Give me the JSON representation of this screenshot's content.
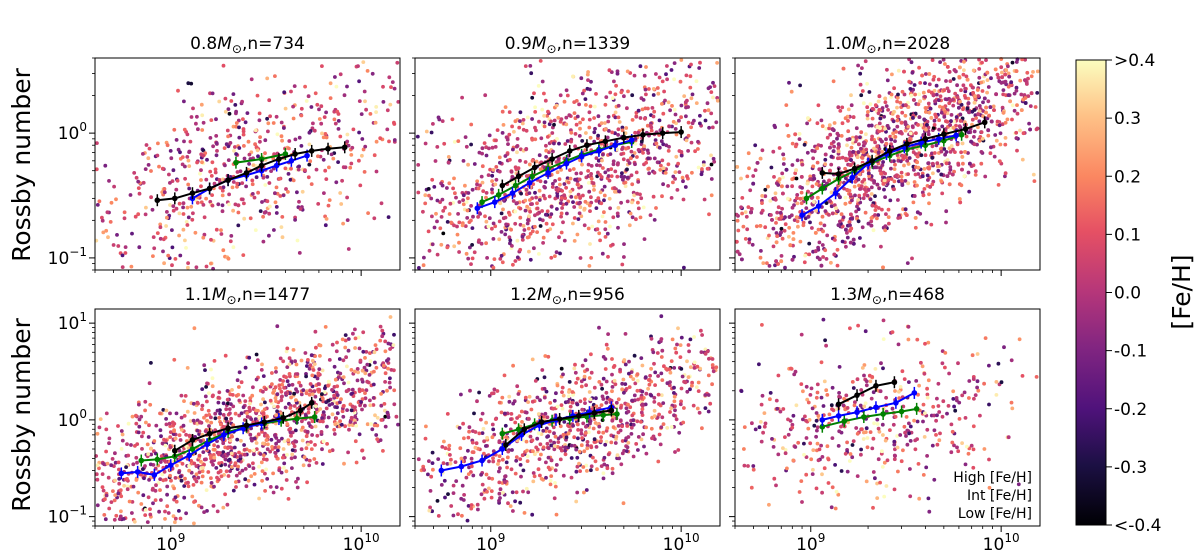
{
  "figure": {
    "ylabel": "Rossby number",
    "colorbar_label": "[Fe/H]",
    "colorbar_ticks": [
      ">0.4",
      "0.3",
      "0.2",
      "0.1",
      "0.0",
      "-0.1",
      "-0.2",
      "-0.3",
      "<-0.4"
    ],
    "legend": [
      {
        "label": "High [Fe/H]",
        "color": "#008000"
      },
      {
        "label": "Int [Fe/H]",
        "color": "#0000ff"
      },
      {
        "label": "Low [Fe/H]",
        "color": "#000000"
      }
    ],
    "colormap": "magma"
  },
  "chart_data": [
    {
      "type": "scatter",
      "title_prefix": "0.8",
      "title_suffix": ",n=734",
      "xscale": "log",
      "yscale": "log",
      "xlim": [
        400000000,
        16000000000
      ],
      "ylim": [
        0.08,
        4
      ],
      "xticks": [
        {
          "value": 1000000000,
          "label": "10",
          "sup": "9"
        },
        {
          "value": 10000000000,
          "label": "10",
          "sup": "10"
        }
      ],
      "yticks": [
        {
          "value": 0.1,
          "label": "10",
          "sup": "−1"
        },
        {
          "value": 1,
          "label": "10",
          "sup": "0"
        }
      ],
      "show_xticklabels": false,
      "n_points": 734,
      "cloud": {
        "center_x": 2500000000,
        "center_y": 0.5,
        "spread_x": 0.27,
        "spread_y": 0.25,
        "slope": 0.5
      },
      "series": [
        {
          "name": "High [Fe/H]",
          "color": "#008000",
          "x": [
            2200000000,
            3000000000,
            4000000000
          ],
          "y": [
            0.58,
            0.62,
            0.68
          ]
        },
        {
          "name": "Int [Fe/H]",
          "color": "#0000ff",
          "x": [
            1300000000,
            1600000000,
            2000000000,
            2500000000,
            3000000000,
            3600000000,
            4300000000,
            5200000000
          ],
          "y": [
            0.3,
            0.36,
            0.42,
            0.46,
            0.5,
            0.55,
            0.6,
            0.66
          ]
        },
        {
          "name": "Low [Fe/H]",
          "color": "#000000",
          "x": [
            850000000,
            1050000000,
            1300000000,
            1600000000,
            2000000000,
            2500000000,
            3000000000,
            3700000000,
            4500000000,
            5500000000,
            6700000000,
            8200000000
          ],
          "y": [
            0.29,
            0.3,
            0.33,
            0.36,
            0.42,
            0.48,
            0.55,
            0.62,
            0.68,
            0.72,
            0.75,
            0.77
          ]
        }
      ]
    },
    {
      "type": "scatter",
      "title_prefix": "0.9",
      "title_suffix": ",n=1339",
      "xscale": "log",
      "yscale": "log",
      "xlim": [
        400000000,
        16000000000
      ],
      "ylim": [
        0.08,
        4
      ],
      "xticks": [
        {
          "value": 1000000000,
          "label": "10",
          "sup": "9"
        },
        {
          "value": 10000000000,
          "label": "10",
          "sup": "10"
        }
      ],
      "yticks": [
        {
          "value": 0.1,
          "label": "10",
          "sup": "−1"
        },
        {
          "value": 1,
          "label": "10",
          "sup": "0"
        }
      ],
      "show_xticklabels": false,
      "n_points": 1339,
      "cloud": {
        "center_x": 2800000000,
        "center_y": 0.55,
        "spread_x": 0.27,
        "spread_y": 0.25,
        "slope": 0.6
      },
      "series": [
        {
          "name": "High [Fe/H]",
          "color": "#008000",
          "x": [
            900000000,
            1100000000,
            1350000000,
            1650000000,
            2000000000,
            2500000000,
            3000000000,
            3700000000,
            4500000000,
            5500000000
          ],
          "y": [
            0.28,
            0.32,
            0.38,
            0.45,
            0.52,
            0.6,
            0.67,
            0.74,
            0.8,
            0.85
          ]
        },
        {
          "name": "Int [Fe/H]",
          "color": "#0000ff",
          "x": [
            850000000,
            1050000000,
            1300000000,
            1600000000,
            2000000000,
            2500000000,
            3000000000,
            3700000000,
            4500000000,
            5500000000
          ],
          "y": [
            0.25,
            0.28,
            0.33,
            0.4,
            0.48,
            0.57,
            0.65,
            0.72,
            0.8,
            0.88
          ]
        },
        {
          "name": "Low [Fe/H]",
          "color": "#000000",
          "x": [
            1150000000,
            1400000000,
            1700000000,
            2100000000,
            2600000000,
            3200000000,
            4000000000,
            5000000000,
            6300000000,
            8000000000,
            10000000000
          ],
          "y": [
            0.38,
            0.45,
            0.53,
            0.62,
            0.72,
            0.8,
            0.86,
            0.92,
            0.97,
            1.0,
            1.02
          ]
        }
      ]
    },
    {
      "type": "scatter",
      "title_prefix": "1.0",
      "title_suffix": ",n=2028",
      "xscale": "log",
      "yscale": "log",
      "xlim": [
        400000000,
        16000000000
      ],
      "ylim": [
        0.08,
        4
      ],
      "xticks": [
        {
          "value": 1000000000,
          "label": "10",
          "sup": "9"
        },
        {
          "value": 10000000000,
          "label": "10",
          "sup": "10"
        }
      ],
      "yticks": [
        {
          "value": 0.1,
          "label": "10",
          "sup": "−1"
        },
        {
          "value": 1,
          "label": "10",
          "sup": "0"
        }
      ],
      "show_xticklabels": false,
      "n_points": 2028,
      "cloud": {
        "center_x": 3000000000,
        "center_y": 0.75,
        "spread_x": 0.25,
        "spread_y": 0.22,
        "slope": 0.8
      },
      "series": [
        {
          "name": "High [Fe/H]",
          "color": "#008000",
          "x": [
            950000000,
            1150000000,
            1400000000,
            1700000000,
            2100000000,
            2600000000,
            3200000000,
            4000000000,
            5000000000,
            6200000000
          ],
          "y": [
            0.3,
            0.36,
            0.43,
            0.5,
            0.58,
            0.66,
            0.74,
            0.8,
            0.87,
            0.97
          ]
        },
        {
          "name": "Int [Fe/H]",
          "color": "#0000ff",
          "x": [
            900000000,
            1100000000,
            1350000000,
            1650000000,
            2000000000,
            2500000000,
            3100000000,
            3800000000,
            4700000000,
            5800000000
          ],
          "y": [
            0.22,
            0.26,
            0.33,
            0.44,
            0.57,
            0.68,
            0.77,
            0.84,
            0.9,
            0.96
          ]
        },
        {
          "name": "Low [Fe/H]",
          "color": "#000000",
          "x": [
            1150000000,
            1400000000,
            1700000000,
            2100000000,
            2600000000,
            3200000000,
            4000000000,
            5000000000,
            6500000000,
            8200000000
          ],
          "y": [
            0.48,
            0.47,
            0.52,
            0.6,
            0.72,
            0.82,
            0.9,
            0.98,
            1.08,
            1.22
          ]
        }
      ]
    },
    {
      "type": "scatter",
      "title_prefix": "1.1",
      "title_suffix": ",n=1477",
      "xscale": "log",
      "yscale": "log",
      "xlim": [
        400000000,
        16000000000
      ],
      "ylim": [
        0.08,
        14
      ],
      "xticks": [
        {
          "value": 1000000000,
          "label": "10",
          "sup": "9"
        },
        {
          "value": 10000000000,
          "label": "10",
          "sup": "10"
        }
      ],
      "yticks": [
        {
          "value": 0.1,
          "label": "10",
          "sup": "−1"
        },
        {
          "value": 1,
          "label": "10",
          "sup": "0"
        },
        {
          "value": 10,
          "label": "10",
          "sup": "1"
        }
      ],
      "show_xticklabels": true,
      "n_points": 1477,
      "cloud": {
        "center_x": 2600000000,
        "center_y": 0.8,
        "spread_x": 0.27,
        "spread_y": 0.22,
        "slope": 0.7
      },
      "series": [
        {
          "name": "High [Fe/H]",
          "color": "#008000",
          "x": [
            700000000,
            850000000,
            1050000000,
            1300000000,
            1600000000,
            2000000000,
            2500000000,
            3100000000,
            3800000000,
            4600000000,
            5700000000
          ],
          "y": [
            0.38,
            0.39,
            0.42,
            0.5,
            0.62,
            0.75,
            0.85,
            0.92,
            0.98,
            1.03,
            1.07
          ]
        },
        {
          "name": "Int [Fe/H]",
          "color": "#0000ff",
          "x": [
            550000000,
            670000000,
            820000000,
            1000000000,
            1250000000,
            1550000000,
            1900000000,
            2400000000,
            3000000000,
            3700000000
          ],
          "y": [
            0.28,
            0.29,
            0.27,
            0.34,
            0.43,
            0.56,
            0.7,
            0.82,
            0.92,
            1.02
          ]
        },
        {
          "name": "Low [Fe/H]",
          "color": "#000000",
          "x": [
            1050000000,
            1300000000,
            1600000000,
            2000000000,
            2500000000,
            3100000000,
            3900000000,
            4800000000,
            5500000000
          ],
          "y": [
            0.48,
            0.62,
            0.72,
            0.82,
            0.88,
            0.95,
            1.05,
            1.25,
            1.5
          ]
        }
      ]
    },
    {
      "type": "scatter",
      "title_prefix": "1.2",
      "title_suffix": ",n=956",
      "xscale": "log",
      "yscale": "log",
      "xlim": [
        400000000,
        16000000000
      ],
      "ylim": [
        0.08,
        14
      ],
      "xticks": [
        {
          "value": 1000000000,
          "label": "10",
          "sup": "9"
        },
        {
          "value": 10000000000,
          "label": "10",
          "sup": "10"
        }
      ],
      "yticks": [
        {
          "value": 0.1,
          "label": "10",
          "sup": "−1"
        },
        {
          "value": 1,
          "label": "10",
          "sup": "0"
        },
        {
          "value": 10,
          "label": "10",
          "sup": "1"
        }
      ],
      "show_xticklabels": true,
      "n_points": 956,
      "cloud": {
        "center_x": 2700000000,
        "center_y": 0.9,
        "spread_x": 0.22,
        "spread_y": 0.22,
        "slope": 0.7
      },
      "series": [
        {
          "name": "High [Fe/H]",
          "color": "#008000",
          "x": [
            1150000000,
            1400000000,
            1700000000,
            2100000000,
            2600000000,
            3200000000,
            3900000000,
            4600000000
          ],
          "y": [
            0.72,
            0.8,
            0.9,
            0.98,
            1.03,
            1.08,
            1.12,
            1.15
          ]
        },
        {
          "name": "Int [Fe/H]",
          "color": "#0000ff",
          "x": [
            550000000,
            700000000,
            900000000,
            1150000000,
            1450000000,
            1800000000,
            2200000000,
            2700000000,
            3300000000,
            4300000000
          ],
          "y": [
            0.3,
            0.33,
            0.38,
            0.5,
            0.7,
            0.88,
            1.0,
            1.1,
            1.2,
            1.35
          ]
        },
        {
          "name": "Low [Fe/H]",
          "color": "#000000",
          "x": [
            1200000000,
            1500000000,
            1850000000,
            2300000000,
            2900000000,
            3500000000,
            4300000000
          ],
          "y": [
            0.55,
            0.8,
            0.95,
            1.02,
            1.1,
            1.18,
            1.25
          ]
        }
      ]
    },
    {
      "type": "scatter",
      "title_prefix": "1.3",
      "title_suffix": ",n=468",
      "xscale": "log",
      "yscale": "log",
      "xlim": [
        400000000,
        16000000000
      ],
      "ylim": [
        0.08,
        14
      ],
      "xticks": [
        {
          "value": 1000000000,
          "label": "10",
          "sup": "9"
        },
        {
          "value": 10000000000,
          "label": "10",
          "sup": "10"
        }
      ],
      "yticks": [
        {
          "value": 0.1,
          "label": "10",
          "sup": "−1"
        },
        {
          "value": 1,
          "label": "10",
          "sup": "0"
        },
        {
          "value": 10,
          "label": "10",
          "sup": "1"
        }
      ],
      "show_xticklabels": true,
      "n_points": 468,
      "cloud": {
        "center_x": 2200000000,
        "center_y": 1.0,
        "spread_x": 0.2,
        "spread_y": 0.26,
        "slope": 0.3
      },
      "series": [
        {
          "name": "High [Fe/H]",
          "color": "#008000",
          "x": [
            1150000000,
            1500000000,
            1900000000,
            2400000000,
            3000000000,
            3600000000
          ],
          "y": [
            0.85,
            0.97,
            1.07,
            1.15,
            1.22,
            1.3
          ]
        },
        {
          "name": "Int [Fe/H]",
          "color": "#0000ff",
          "x": [
            1150000000,
            1400000000,
            1750000000,
            2200000000,
            2800000000,
            3500000000
          ],
          "y": [
            1.0,
            1.1,
            1.2,
            1.35,
            1.5,
            1.9
          ]
        },
        {
          "name": "Low [Fe/H]",
          "color": "#000000",
          "x": [
            1400000000,
            1750000000,
            2200000000,
            2750000000
          ],
          "y": [
            1.45,
            1.8,
            2.25,
            2.45
          ]
        }
      ]
    }
  ]
}
